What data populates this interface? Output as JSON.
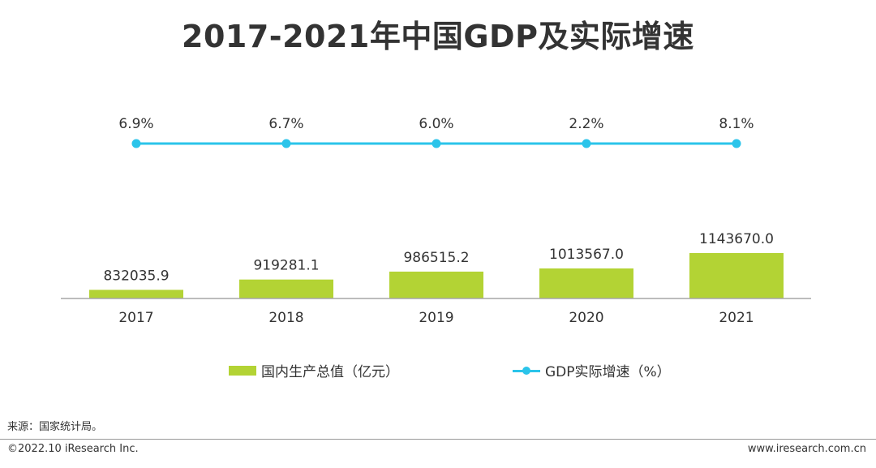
{
  "title": "2017-2021年中国GDP及实际增速",
  "colors": {
    "bar": "#B3D334",
    "line": "#2BC4EA",
    "axis": "#A6A6A6",
    "text": "#333333"
  },
  "chart_data": {
    "type": "bar",
    "categories": [
      "2017",
      "2018",
      "2019",
      "2020",
      "2021"
    ],
    "series": [
      {
        "name": "国内生产总值（亿元）",
        "type": "bar",
        "values": [
          832035.9,
          919281.1,
          986515.2,
          1013567.0,
          1143670.0
        ],
        "labels": [
          "832035.9",
          "919281.1",
          "986515.2",
          "1013567.0",
          "1143670.0"
        ]
      },
      {
        "name": "GDP实际增速（%）",
        "type": "line",
        "values": [
          6.9,
          6.7,
          6.0,
          2.2,
          8.1
        ],
        "labels": [
          "6.9%",
          "6.7%",
          "6.0%",
          "2.2%",
          "8.1%"
        ]
      }
    ],
    "grid": false,
    "legend_position": "bottom"
  },
  "footer": {
    "source": "来源：国家统计局。",
    "copyright": "©2022.10 iResearch Inc.",
    "website": "www.iresearch.com.cn"
  }
}
